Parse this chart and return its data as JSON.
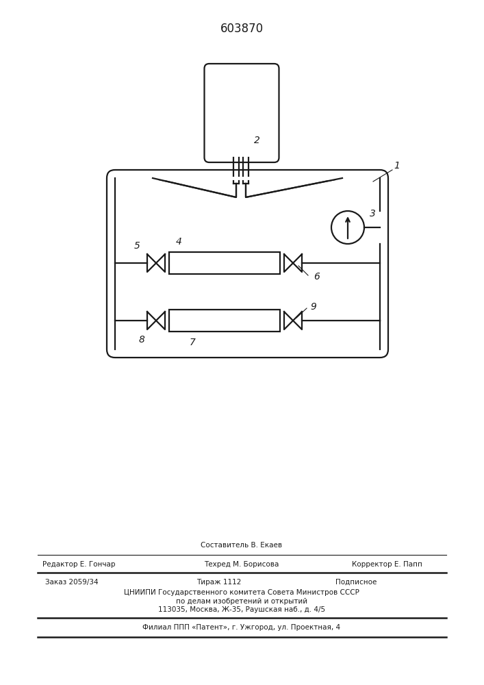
{
  "title": "603870",
  "bg_color": "#ffffff",
  "line_color": "#1a1a1a",
  "label_1": "1",
  "label_2": "2",
  "label_3": "3",
  "label_4": "4",
  "label_5": "5",
  "label_6": "6",
  "label_7": "7",
  "label_8": "8",
  "label_9": "9",
  "footer_line0": "Составитель В. Екаев",
  "footer_line1_left": "Редактор Е. Гончар",
  "footer_line1_center": "Техред М. Борисова",
  "footer_line1_right": "Корректор Е. Папп",
  "footer_line2_1": "Заказ 2059/34",
  "footer_line2_2": "Тираж 1112",
  "footer_line2_3": "Подписное",
  "footer_line3": "ЦНИИПИ Государственного комитета Совета Министров СССР",
  "footer_line4": "по делам изобретений и открытий",
  "footer_line5": "113035, Москва, Ж-35, Раушская наб., д. 4/5",
  "footer_line6": "Филиал ППП «Патент», г. Ужгород, ул. Проектная, 4"
}
